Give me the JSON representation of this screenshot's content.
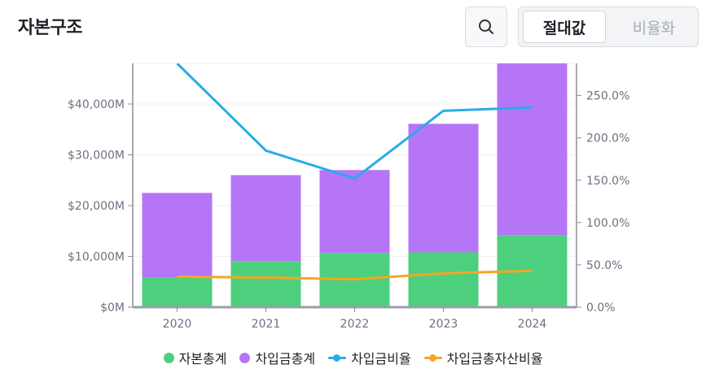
{
  "header": {
    "title": "자본구조",
    "search_icon": "search-icon",
    "toggle": {
      "active_label": "절대값",
      "inactive_label": "비율화"
    }
  },
  "colors": {
    "equity": "#4cd07d",
    "debt": "#b675f7",
    "debt_ratio": "#29abe8",
    "debt_to_asset": "#f5a623"
  },
  "chart_data": {
    "type": "bar",
    "stacked": true,
    "categories": [
      "2020",
      "2021",
      "2022",
      "2023",
      "2024"
    ],
    "series": [
      {
        "name": "자본총계",
        "kind": "bar",
        "axis": "left",
        "values": [
          5800,
          9100,
          10700,
          10800,
          14200
        ]
      },
      {
        "name": "차입금총계",
        "kind": "bar",
        "axis": "left",
        "values": [
          16700,
          16900,
          16300,
          25300,
          34000
        ]
      },
      {
        "name": "차입금비율",
        "kind": "line",
        "axis": "right",
        "values": [
          288.0,
          185.0,
          152.0,
          232.0,
          236.0
        ]
      },
      {
        "name": "차입금총자산비율",
        "kind": "line",
        "axis": "right",
        "values": [
          36.0,
          35.0,
          33.0,
          40.0,
          43.0
        ]
      }
    ],
    "y_left": {
      "ylim": [
        0,
        48000
      ],
      "ticks": [
        0,
        10000,
        20000,
        30000,
        40000
      ],
      "tick_labels": [
        "$0M",
        "$10,000M",
        "$20,000M",
        "$30,000M",
        "$40,000M"
      ]
    },
    "y_right": {
      "ylim": [
        0,
        288
      ],
      "ticks": [
        0,
        50,
        100,
        150,
        200,
        250
      ],
      "tick_labels": [
        "0.0%",
        "50.0%",
        "100.0%",
        "150.0%",
        "200.0%",
        "250.0%"
      ]
    },
    "grid": true,
    "legend_position": "bottom"
  }
}
